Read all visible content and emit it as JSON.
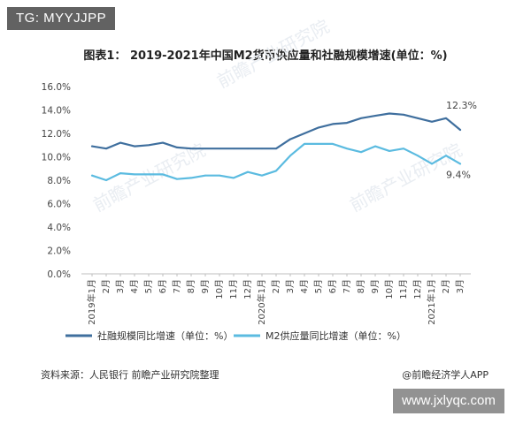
{
  "tag": "TG: MYYJJPP",
  "source": "资料来源：人民银行 前瞻产业研究院整理",
  "credit": "@前瞻经济学人APP",
  "url": "www.jxlyqc.com",
  "watermark": "前瞻产业研究院",
  "chart_data": {
    "type": "line",
    "title": "图表1： 2019-2021年中国M2货币供应量和社融规模增速(单位：%)",
    "xlabel": "",
    "ylabel": "",
    "ylim": [
      0,
      16
    ],
    "yticks": [
      "0.0%",
      "2.0%",
      "4.0%",
      "6.0%",
      "8.0%",
      "10.0%",
      "12.0%",
      "14.0%",
      "16.0%"
    ],
    "grid": false,
    "legend": "bottom",
    "x": [
      "2019年1月",
      "2月",
      "3月",
      "4月",
      "5月",
      "6月",
      "7月",
      "8月",
      "9月",
      "10月",
      "11月",
      "12月",
      "2020年1月",
      "2月",
      "3月",
      "4月",
      "5月",
      "6月",
      "7月",
      "8月",
      "9月",
      "10月",
      "11月",
      "12月",
      "2021年1月",
      "2月",
      "3月"
    ],
    "series": [
      {
        "name": "社融规模同比增速（单位：%）",
        "color": "#3f6f9e",
        "values": [
          10.9,
          10.7,
          11.2,
          10.9,
          11.0,
          11.2,
          10.8,
          10.7,
          10.7,
          10.7,
          10.7,
          10.7,
          10.7,
          10.7,
          11.5,
          12.0,
          12.5,
          12.8,
          12.9,
          13.3,
          13.5,
          13.7,
          13.6,
          13.3,
          13.0,
          13.3,
          12.3
        ],
        "end_label": "12.3%"
      },
      {
        "name": "M2供应量同比增速（单位：%）",
        "color": "#5bbbe0",
        "values": [
          8.4,
          8.0,
          8.6,
          8.5,
          8.5,
          8.5,
          8.1,
          8.2,
          8.4,
          8.4,
          8.2,
          8.7,
          8.4,
          8.8,
          10.1,
          11.1,
          11.1,
          11.1,
          10.7,
          10.4,
          10.9,
          10.5,
          10.7,
          10.1,
          9.4,
          10.1,
          9.4
        ],
        "end_label": "9.4%"
      }
    ]
  }
}
